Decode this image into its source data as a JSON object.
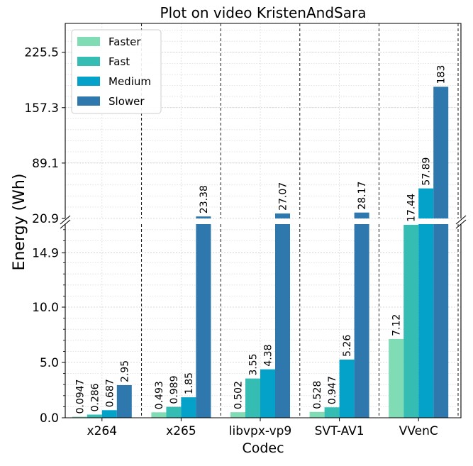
{
  "chart_data": {
    "type": "bar",
    "title": "Plot on video KristenAndSara",
    "xlabel": "Codec",
    "ylabel": "Energy (Wh)",
    "categories": [
      "x264",
      "x265",
      "libvpx-vp9",
      "SVT-AV1",
      "VVenC"
    ],
    "series": [
      {
        "name": "Faster",
        "color": "#7fdcb4",
        "values": [
          0.0947,
          0.493,
          0.502,
          0.528,
          7.12
        ],
        "labels": [
          "0.0947",
          "0.493",
          "0.502",
          "0.528",
          "7.12"
        ]
      },
      {
        "name": "Fast",
        "color": "#35bdb4",
        "values": [
          0.286,
          0.989,
          3.55,
          0.947,
          17.44
        ],
        "labels": [
          "0.286",
          "0.989",
          "3.55",
          "0.947",
          "17.44"
        ]
      },
      {
        "name": "Medium",
        "color": "#04a2c9",
        "values": [
          0.687,
          1.85,
          4.38,
          5.26,
          57.89
        ],
        "labels": [
          "0.687",
          "1.85",
          "4.38",
          "5.26",
          "57.89"
        ]
      },
      {
        "name": "Slower",
        "color": "#2f78ad",
        "values": [
          2.95,
          23.38,
          27.07,
          28.17,
          183
        ],
        "labels": [
          "2.95",
          "23.38",
          "27.07",
          "28.17",
          "183"
        ]
      }
    ],
    "broken_axis": {
      "lower": {
        "ylim": [
          0,
          17.5
        ],
        "ticks": [
          "0.0",
          "5.0",
          "10.0",
          "14.9"
        ],
        "tick_values": [
          0,
          5,
          10,
          14.9
        ]
      },
      "upper": {
        "ylim": [
          20.9,
          261
        ],
        "ticks": [
          "20.9",
          "89.1",
          "157.3",
          "225.5"
        ],
        "tick_values": [
          20.9,
          89.1,
          157.3,
          225.5
        ]
      }
    },
    "grid": true,
    "legend_position": "top-left"
  }
}
